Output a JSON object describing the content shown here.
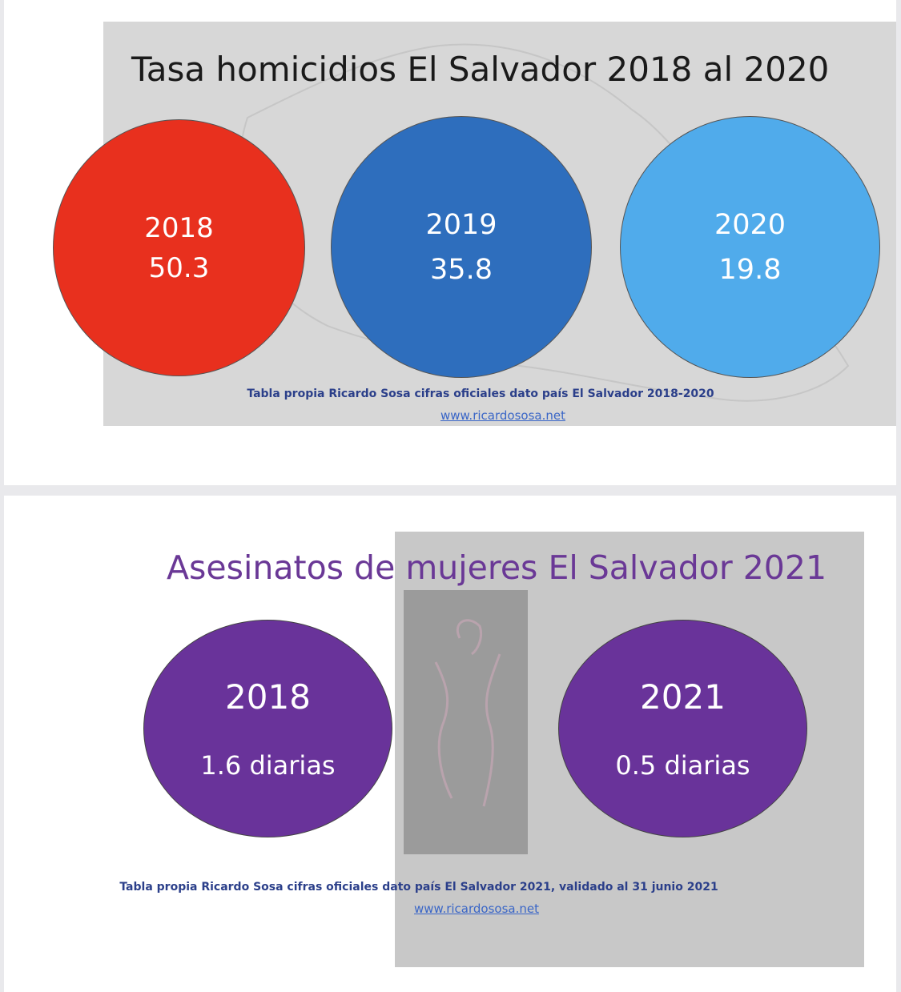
{
  "slide1": {
    "title": "Tasa homicidios El Salvador 2018 al 2020",
    "circles": [
      {
        "year": "2018",
        "value": "50.3",
        "color": "#e8301e"
      },
      {
        "year": "2019",
        "value": "35.8",
        "color": "#2e6ebd"
      },
      {
        "year": "2020",
        "value": "19.8",
        "color": "#50abeb"
      }
    ],
    "source": "Tabla propia Ricardo Sosa cifras oficiales dato país El Salvador 2018-2020",
    "link": "www.ricardososa.net"
  },
  "slide2": {
    "title": "Asesinatos de mujeres El Salvador 2021",
    "circles": [
      {
        "year": "2018",
        "value": "1.6 diarias",
        "color": "#69339a"
      },
      {
        "year": "2021",
        "value": "0.5 diarias",
        "color": "#69339a"
      }
    ],
    "source": "Tabla propia Ricardo Sosa cifras oficiales dato país El Salvador 2021, validado al 31 junio 2021",
    "link": "www.ricardososa.net"
  }
}
